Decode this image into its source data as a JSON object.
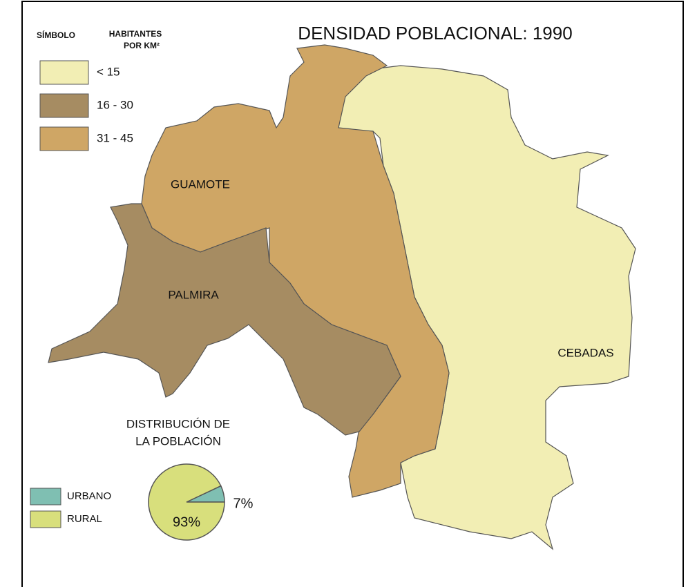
{
  "title": "DENSIDAD POBLACIONAL: 1990",
  "legend": {
    "symbol_header": "SÍMBOLO",
    "density_header": [
      "HABITANTES",
      "POR KM²"
    ],
    "items": [
      {
        "label": "< 15",
        "color": "#f2eeb4"
      },
      {
        "label": "16 - 30",
        "color": "#a68c62"
      },
      {
        "label": "31 - 45",
        "color": "#cfa665"
      }
    ]
  },
  "regions": [
    {
      "name": "CEBADAS",
      "class": 0
    },
    {
      "name": "GUAMOTE",
      "class": 2
    },
    {
      "name": "PALMIRA",
      "class": 1
    }
  ],
  "chart_data": {
    "type": "pie",
    "title": [
      "DISTRIBUCIÓN DE",
      "LA POBLACIÓN"
    ],
    "categories": [
      "URBANO",
      "RURAL"
    ],
    "values": [
      7,
      93
    ],
    "value_labels": [
      "7%",
      "93%"
    ],
    "colors": [
      "#7fbfb2",
      "#d8df7c"
    ]
  }
}
